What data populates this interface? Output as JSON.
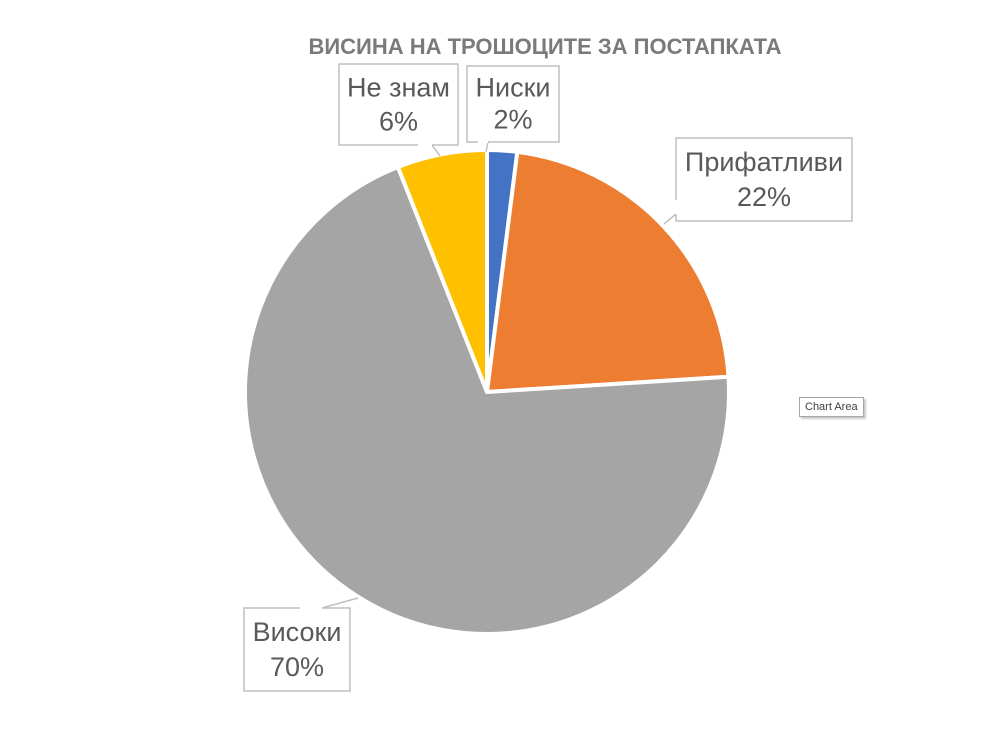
{
  "chart_data": {
    "type": "pie",
    "title": "ВИСИНА НА ТРОШОЦИТЕ ЗА ПОСТАПКАТА",
    "slices": [
      {
        "label": "Ниски",
        "value": 2,
        "value_label": "2%",
        "color": "#4472c4"
      },
      {
        "label": "Прифатливи",
        "value": 22,
        "value_label": "22%",
        "color": "#ed7d31"
      },
      {
        "label": "Високи",
        "value": 70,
        "value_label": "70%",
        "color": "#a5a5a5"
      },
      {
        "label": "Не знам",
        "value": 6,
        "value_label": "6%",
        "color": "#ffc000"
      }
    ],
    "data_labels": "callouts"
  },
  "tooltip": {
    "text": "Chart Area"
  }
}
